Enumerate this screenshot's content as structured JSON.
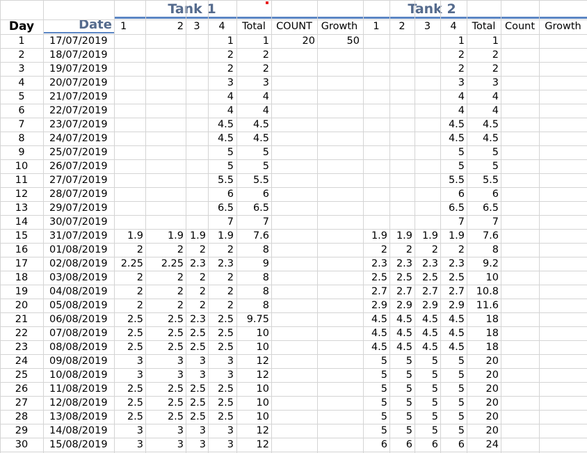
{
  "colors": {
    "tank_title": "#556b8d",
    "underline": "#5b86c4",
    "grid": "#d4d4d4",
    "marker": "#e82020"
  },
  "headers": {
    "tank1": "Tank 1",
    "tank2": "Tank 2",
    "day": "Day",
    "date": "Date",
    "t1": [
      "1",
      "2",
      "3",
      "4",
      "Total",
      "COUNT",
      "Growth"
    ],
    "t2": [
      "1",
      "2",
      "3",
      "4",
      "Total",
      "Count",
      "Growth"
    ]
  },
  "rows": [
    [
      "1",
      "17/07/2019",
      "",
      "",
      "",
      "1",
      "1",
      "20",
      "50",
      "",
      "",
      "",
      "1",
      "1",
      ""
    ],
    [
      "2",
      "18/07/2019",
      "",
      "",
      "",
      "2",
      "2",
      "",
      "",
      "",
      "",
      "",
      "2",
      "2",
      ""
    ],
    [
      "3",
      "19/07/2019",
      "",
      "",
      "",
      "2",
      "2",
      "",
      "",
      "",
      "",
      "",
      "2",
      "2",
      ""
    ],
    [
      "4",
      "20/07/2019",
      "",
      "",
      "",
      "3",
      "3",
      "",
      "",
      "",
      "",
      "",
      "3",
      "3",
      ""
    ],
    [
      "5",
      "21/07/2019",
      "",
      "",
      "",
      "4",
      "4",
      "",
      "",
      "",
      "",
      "",
      "4",
      "4",
      ""
    ],
    [
      "6",
      "22/07/2019",
      "",
      "",
      "",
      "4",
      "4",
      "",
      "",
      "",
      "",
      "",
      "4",
      "4",
      ""
    ],
    [
      "7",
      "23/07/2019",
      "",
      "",
      "",
      "4.5",
      "4.5",
      "",
      "",
      "",
      "",
      "",
      "4.5",
      "4.5",
      ""
    ],
    [
      "8",
      "24/07/2019",
      "",
      "",
      "",
      "4.5",
      "4.5",
      "",
      "",
      "",
      "",
      "",
      "4.5",
      "4.5",
      ""
    ],
    [
      "9",
      "25/07/2019",
      "",
      "",
      "",
      "5",
      "5",
      "",
      "",
      "",
      "",
      "",
      "5",
      "5",
      ""
    ],
    [
      "10",
      "26/07/2019",
      "",
      "",
      "",
      "5",
      "5",
      "",
      "",
      "",
      "",
      "",
      "5",
      "5",
      ""
    ],
    [
      "11",
      "27/07/2019",
      "",
      "",
      "",
      "5.5",
      "5.5",
      "",
      "",
      "",
      "",
      "",
      "5.5",
      "5.5",
      ""
    ],
    [
      "12",
      "28/07/2019",
      "",
      "",
      "",
      "6",
      "6",
      "",
      "",
      "",
      "",
      "",
      "6",
      "6",
      ""
    ],
    [
      "13",
      "29/07/2019",
      "",
      "",
      "",
      "6.5",
      "6.5",
      "",
      "",
      "",
      "",
      "",
      "6.5",
      "6.5",
      ""
    ],
    [
      "14",
      "30/07/2019",
      "",
      "",
      "",
      "7",
      "7",
      "",
      "",
      "",
      "",
      "",
      "7",
      "7",
      ""
    ],
    [
      "15",
      "31/07/2019",
      "1.9",
      "1.9",
      "1.9",
      "1.9",
      "7.6",
      "",
      "",
      "1.9",
      "1.9",
      "1.9",
      "1.9",
      "7.6",
      ""
    ],
    [
      "16",
      "01/08/2019",
      "2",
      "2",
      "2",
      "2",
      "8",
      "",
      "",
      "2",
      "2",
      "2",
      "2",
      "8",
      ""
    ],
    [
      "17",
      "02/08/2019",
      "2.25",
      "2.25",
      "2.3",
      "2.3",
      "9",
      "",
      "",
      "2.3",
      "2.3",
      "2.3",
      "2.3",
      "9.2",
      ""
    ],
    [
      "18",
      "03/08/2019",
      "2",
      "2",
      "2",
      "2",
      "8",
      "",
      "",
      "2.5",
      "2.5",
      "2.5",
      "2.5",
      "10",
      ""
    ],
    [
      "19",
      "04/08/2019",
      "2",
      "2",
      "2",
      "2",
      "8",
      "",
      "",
      "2.7",
      "2.7",
      "2.7",
      "2.7",
      "10.8",
      ""
    ],
    [
      "20",
      "05/08/2019",
      "2",
      "2",
      "2",
      "2",
      "8",
      "",
      "",
      "2.9",
      "2.9",
      "2.9",
      "2.9",
      "11.6",
      ""
    ],
    [
      "21",
      "06/08/2019",
      "2.5",
      "2.5",
      "2.3",
      "2.5",
      "9.75",
      "",
      "",
      "4.5",
      "4.5",
      "4.5",
      "4.5",
      "18",
      ""
    ],
    [
      "22",
      "07/08/2019",
      "2.5",
      "2.5",
      "2.5",
      "2.5",
      "10",
      "",
      "",
      "4.5",
      "4.5",
      "4.5",
      "4.5",
      "18",
      ""
    ],
    [
      "23",
      "08/08/2019",
      "2.5",
      "2.5",
      "2.5",
      "2.5",
      "10",
      "",
      "",
      "4.5",
      "4.5",
      "4.5",
      "4.5",
      "18",
      ""
    ],
    [
      "24",
      "09/08/2019",
      "3",
      "3",
      "3",
      "3",
      "12",
      "",
      "",
      "5",
      "5",
      "5",
      "5",
      "20",
      ""
    ],
    [
      "25",
      "10/08/2019",
      "3",
      "3",
      "3",
      "3",
      "12",
      "",
      "",
      "5",
      "5",
      "5",
      "5",
      "20",
      ""
    ],
    [
      "26",
      "11/08/2019",
      "2.5",
      "2.5",
      "2.5",
      "2.5",
      "10",
      "",
      "",
      "5",
      "5",
      "5",
      "5",
      "20",
      ""
    ],
    [
      "27",
      "12/08/2019",
      "2.5",
      "2.5",
      "2.5",
      "2.5",
      "10",
      "",
      "",
      "5",
      "5",
      "5",
      "5",
      "20",
      ""
    ],
    [
      "28",
      "13/08/2019",
      "2.5",
      "2.5",
      "2.5",
      "2.5",
      "10",
      "",
      "",
      "5",
      "5",
      "5",
      "5",
      "20",
      ""
    ],
    [
      "29",
      "14/08/2019",
      "3",
      "3",
      "3",
      "3",
      "12",
      "",
      "",
      "5",
      "5",
      "5",
      "5",
      "20",
      ""
    ],
    [
      "30",
      "15/08/2019",
      "3",
      "3",
      "3",
      "3",
      "12",
      "",
      "",
      "6",
      "6",
      "6",
      "6",
      "24",
      ""
    ]
  ]
}
